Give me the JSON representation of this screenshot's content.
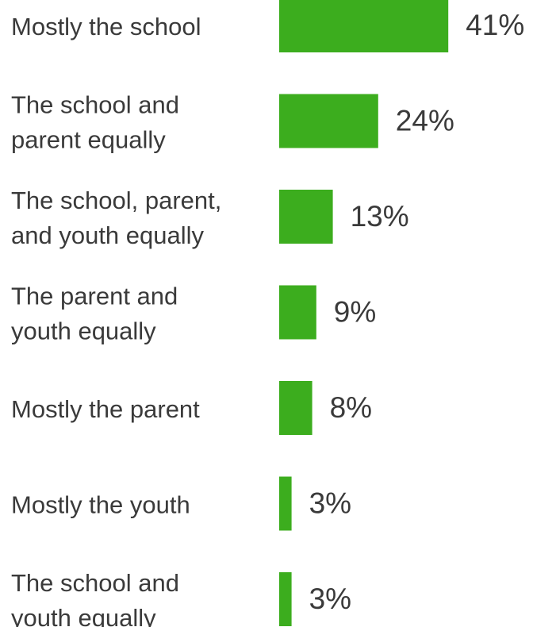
{
  "chart_data": {
    "type": "bar",
    "orientation": "horizontal",
    "categories": [
      [
        "Mostly the school"
      ],
      [
        "The school and",
        "parent equally"
      ],
      [
        "The school, parent,",
        "and youth equally"
      ],
      [
        "The parent and",
        "youth equally"
      ],
      [
        "Mostly the parent"
      ],
      [
        "Mostly the youth"
      ],
      [
        "The school and",
        "youth equally"
      ]
    ],
    "values": [
      41,
      24,
      13,
      9,
      8,
      3,
      3
    ],
    "value_labels": [
      "41%",
      "24%",
      "13%",
      "9%",
      "8%",
      "3%",
      "3%"
    ],
    "unit": "%",
    "bar_color": "#3cad1e",
    "text_color": "#3a3a3a",
    "grid": false,
    "legend": "none"
  }
}
